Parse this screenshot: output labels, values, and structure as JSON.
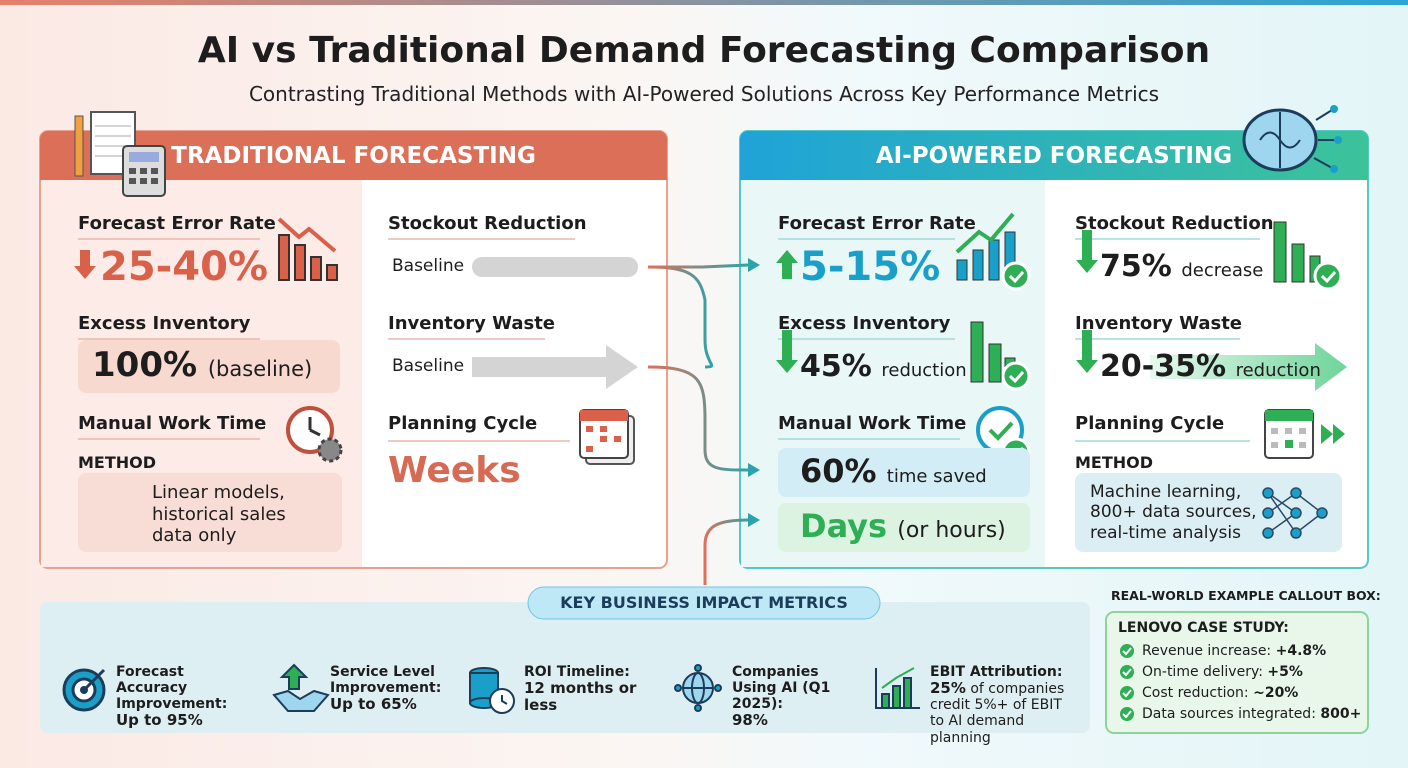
{
  "header": {
    "title": "AI vs Traditional Demand Forecasting Comparison",
    "subtitle": "Contrasting Traditional Methods with AI-Powered Solutions Across Key Performance Metrics"
  },
  "traditional": {
    "title": "TRADITIONAL FORECASTING",
    "forecast_error": {
      "label": "Forecast Error Rate",
      "value": "25-40%"
    },
    "stockout": {
      "label": "Stockout Reduction",
      "value": "Baseline"
    },
    "excess": {
      "label": "Excess Inventory",
      "value": "100%",
      "note": "(baseline)"
    },
    "waste": {
      "label": "Inventory Waste",
      "value": "Baseline"
    },
    "manual": {
      "label": "Manual Work Time"
    },
    "planning": {
      "label": "Planning Cycle",
      "value": "Weeks"
    },
    "method": {
      "label": "METHOD",
      "text": "Linear models, historical sales data only"
    }
  },
  "ai": {
    "title": "AI-POWERED FORECASTING",
    "forecast_error": {
      "label": "Forecast Error Rate",
      "value": "5-15%"
    },
    "stockout": {
      "label": "Stockout Reduction",
      "value": "75%",
      "note": "decrease"
    },
    "excess": {
      "label": "Excess Inventory",
      "value": "45%",
      "note": "reduction"
    },
    "waste": {
      "label": "Inventory Waste",
      "value": "20-35%",
      "note": "reduction"
    },
    "manual": {
      "label": "Manual Work Time",
      "value": "60%",
      "note": "time saved"
    },
    "planning": {
      "label": "Planning Cycle",
      "value": "Days",
      "note": "(or hours)"
    },
    "method": {
      "label": "METHOD",
      "text": "Machine learning, 800+ data sources, real-time analysis"
    }
  },
  "impact": {
    "title": "KEY BUSINESS IMPACT METRICS",
    "items": [
      {
        "label": "Forecast Accuracy Improvement:",
        "value": "Up to 95%"
      },
      {
        "label": "Service Level Improvement:",
        "value": "Up to 65%"
      },
      {
        "label": "ROI Timeline:",
        "value": "12 months or less"
      },
      {
        "label": "Companies Using AI (Q1 2025):",
        "value": "98%"
      },
      {
        "label": "EBIT Attribution:",
        "value": "25%",
        "note": "of companies credit 5%+ of EBIT to AI demand planning"
      }
    ]
  },
  "callout": {
    "heading": "REAL-WORLD EXAMPLE CALLOUT BOX:",
    "title": "LENOVO CASE STUDY:",
    "items": [
      {
        "label": "Revenue increase:",
        "value": "+4.8%"
      },
      {
        "label": "On-time delivery:",
        "value": "+5%"
      },
      {
        "label": "Cost reduction:",
        "value": "~20%"
      },
      {
        "label": "Data sources integrated:",
        "value": "800+"
      }
    ]
  }
}
